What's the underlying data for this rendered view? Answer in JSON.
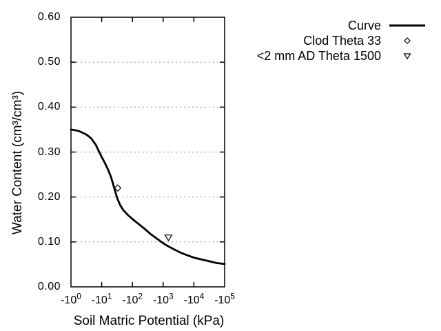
{
  "chart_data": {
    "type": "line",
    "title": "",
    "xlabel": "Soil Matric Potential (kPa)",
    "ylabel": "Water Content (cm³/cm³)",
    "x_scale": "log10 of negative kPa, decades 0 to 5",
    "xlim_exponents": [
      0,
      5
    ],
    "ylim": [
      0.0,
      0.6
    ],
    "grid": "horizontal dotted gridlines at 0.10, 0.20, 0.30, 0.40, 0.50",
    "x_ticks": [
      {
        "base": "-10",
        "exp": "0"
      },
      {
        "base": "-10",
        "exp": "1"
      },
      {
        "base": "-10",
        "exp": "2"
      },
      {
        "base": "-10",
        "exp": "3"
      },
      {
        "base": "-10",
        "exp": "4"
      },
      {
        "base": "-10",
        "exp": "5"
      }
    ],
    "y_ticks": [
      "0.00",
      "0.10",
      "0.20",
      "0.30",
      "0.40",
      "0.50",
      "0.60"
    ],
    "series": [
      {
        "name": "Curve",
        "kind": "line",
        "points_log10kPa_vs_theta": [
          [
            0.0,
            0.35
          ],
          [
            0.25,
            0.347
          ],
          [
            0.5,
            0.339
          ],
          [
            0.65,
            0.331
          ],
          [
            0.8,
            0.317
          ],
          [
            0.9,
            0.303
          ],
          [
            1.0,
            0.289
          ],
          [
            1.1,
            0.276
          ],
          [
            1.2,
            0.262
          ],
          [
            1.3,
            0.245
          ],
          [
            1.4,
            0.222
          ],
          [
            1.5,
            0.198
          ],
          [
            1.6,
            0.182
          ],
          [
            1.7,
            0.171
          ],
          [
            1.85,
            0.16
          ],
          [
            2.0,
            0.151
          ],
          [
            2.2,
            0.14
          ],
          [
            2.4,
            0.129
          ],
          [
            2.6,
            0.117
          ],
          [
            2.8,
            0.107
          ],
          [
            3.0,
            0.097
          ],
          [
            3.2,
            0.089
          ],
          [
            3.4,
            0.082
          ],
          [
            3.6,
            0.075
          ],
          [
            3.8,
            0.07
          ],
          [
            4.0,
            0.065
          ],
          [
            4.25,
            0.061
          ],
          [
            4.5,
            0.057
          ],
          [
            4.75,
            0.053
          ],
          [
            5.0,
            0.051
          ]
        ]
      },
      {
        "name": "Clod Theta 33",
        "kind": "scatter",
        "marker": "open-diamond",
        "points_log10kPa_vs_theta": [
          [
            1.52,
            0.22
          ]
        ],
        "approx_x_kpa": -33,
        "theta": 0.22
      },
      {
        "name": "<2 mm AD Theta 1500",
        "kind": "scatter",
        "marker": "open-triangle-down",
        "points_log10kPa_vs_theta": [
          [
            3.17,
            0.11
          ]
        ],
        "approx_x_kpa": -1500,
        "theta": 0.11
      }
    ],
    "legend": {
      "position": "top-right, outside plot area",
      "entries": [
        {
          "label": "Curve",
          "symbol": "line"
        },
        {
          "label": "Clod Theta 33",
          "symbol": "diamond"
        },
        {
          "label": "<2 mm AD Theta 1500",
          "symbol": "triangle-down"
        }
      ]
    },
    "colors": {
      "line": "#000000",
      "grid": "#999999",
      "background": "#ffffff",
      "text": "#000000"
    }
  }
}
